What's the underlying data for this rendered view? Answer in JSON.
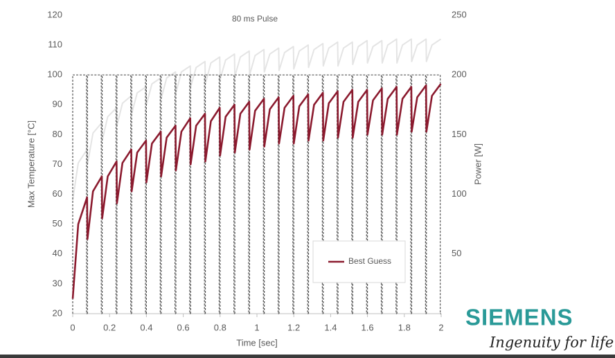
{
  "chart_data": {
    "type": "line",
    "title": "80 ms Pulse",
    "x_label": "Time [sec]",
    "y_label": "Max Temperature [°C]",
    "y2_label": "Power [W]",
    "xlim": [
      0,
      2
    ],
    "xticks": [
      0,
      0.2,
      0.4,
      0.6,
      0.8,
      1,
      1.2,
      1.4,
      1.6,
      1.8,
      2
    ],
    "ylim": [
      20,
      120
    ],
    "yticks": [
      20,
      30,
      40,
      50,
      60,
      70,
      80,
      90,
      100,
      110,
      120
    ],
    "y2lim": [
      0,
      250
    ],
    "y2ticks": [
      50,
      100,
      150,
      200,
      250
    ],
    "grid": false,
    "legend": "lower right",
    "x": [
      0,
      0.03,
      0.078,
      0.08,
      0.11,
      0.158,
      0.16,
      0.19,
      0.238,
      0.24,
      0.27,
      0.318,
      0.32,
      0.35,
      0.398,
      0.4,
      0.43,
      0.478,
      0.48,
      0.51,
      0.558,
      0.56,
      0.59,
      0.638,
      0.64,
      0.67,
      0.718,
      0.72,
      0.75,
      0.798,
      0.8,
      0.83,
      0.878,
      0.88,
      0.91,
      0.958,
      0.96,
      0.99,
      1.038,
      1.04,
      1.07,
      1.118,
      1.12,
      1.15,
      1.198,
      1.2,
      1.23,
      1.278,
      1.28,
      1.31,
      1.358,
      1.36,
      1.39,
      1.438,
      1.44,
      1.47,
      1.518,
      1.52,
      1.55,
      1.598,
      1.6,
      1.63,
      1.678,
      1.68,
      1.71,
      1.758,
      1.76,
      1.79,
      1.838,
      1.84,
      1.87,
      1.918,
      1.92,
      1.95,
      1.998
    ],
    "series": [
      {
        "color": "#e4e4e4",
        "width": 2,
        "values": [
          58,
          70.5,
          75,
          70,
          80.5,
          84,
          78,
          86,
          89,
          83,
          90.5,
          93,
          87,
          94,
          96,
          90,
          97,
          99,
          92,
          99,
          101,
          94,
          101,
          103,
          96,
          102.5,
          104.5,
          97,
          104,
          106,
          98.5,
          105,
          107,
          99.5,
          106,
          108,
          100,
          106.5,
          108.5,
          101,
          107,
          109,
          101.5,
          107.5,
          109.5,
          102,
          108,
          110,
          102.5,
          108.5,
          110.5,
          103,
          109,
          111,
          103,
          109,
          111,
          103.5,
          109.5,
          111.5,
          104,
          109.5,
          111.5,
          104,
          110,
          112,
          104,
          110,
          112,
          104.5,
          110,
          112,
          104.5,
          110,
          112
        ]
      },
      {
        "axis": "y2",
        "color": "#555555",
        "width": 1.2,
        "dash": true,
        "step": "post",
        "x": [
          0,
          0.075,
          0.08,
          0.155,
          0.16,
          0.235,
          0.24,
          0.315,
          0.32,
          0.395,
          0.4,
          0.475,
          0.48,
          0.555,
          0.56,
          0.635,
          0.64,
          0.715,
          0.72,
          0.795,
          0.8,
          0.875,
          0.88,
          0.955,
          0.96,
          1.035,
          1.04,
          1.115,
          1.12,
          1.195,
          1.2,
          1.275,
          1.28,
          1.355,
          1.36,
          1.435,
          1.44,
          1.515,
          1.52,
          1.595,
          1.6,
          1.675,
          1.68,
          1.755,
          1.76,
          1.835,
          1.84,
          1.915,
          1.92,
          1.995
        ],
        "values": [
          200,
          0,
          200,
          0,
          200,
          0,
          200,
          0,
          200,
          0,
          200,
          0,
          200,
          0,
          200,
          0,
          200,
          0,
          200,
          0,
          200,
          0,
          200,
          0,
          200,
          0,
          200,
          0,
          200,
          0,
          200,
          0,
          200,
          0,
          200,
          0,
          200,
          0,
          200,
          0,
          200,
          0,
          200,
          0,
          200,
          0,
          200,
          0,
          200,
          0
        ]
      },
      {
        "name": "Best Guess",
        "color": "#8b1a2e",
        "width": 2.6,
        "values": [
          25,
          50,
          59,
          45,
          61,
          66,
          52,
          66,
          71,
          57,
          70.5,
          75,
          61,
          74,
          78,
          64,
          77,
          81,
          66,
          79,
          83,
          68,
          81,
          85.5,
          70,
          83,
          87,
          71,
          84.5,
          89,
          73,
          86,
          90,
          74,
          87,
          91,
          75,
          88,
          92,
          76,
          88.5,
          92.5,
          77,
          89,
          93,
          77,
          89.5,
          93.5,
          78,
          90,
          94,
          78,
          90.5,
          94.5,
          79,
          91,
          95,
          79,
          91,
          95,
          80,
          91.5,
          95.5,
          80,
          92,
          96,
          80,
          92,
          96,
          81,
          92.5,
          96.5,
          81,
          93,
          97
        ]
      }
    ]
  },
  "logo": {
    "name": "SIEMENS",
    "tagline": "Ingenuity for life"
  }
}
